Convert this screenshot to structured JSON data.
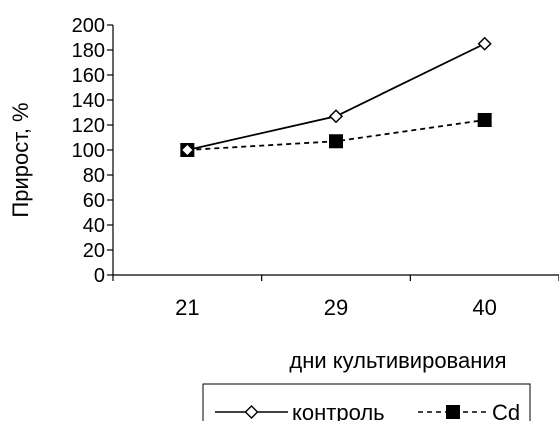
{
  "chart_data": {
    "type": "line",
    "categories": [
      "21",
      "29",
      "40"
    ],
    "ylabel": "Прирост, %",
    "xlabel": "дни культивирования",
    "ylim": [
      0,
      200
    ],
    "yticks": [
      "0",
      "20",
      "40",
      "60",
      "80",
      "100",
      "120",
      "140",
      "160",
      "180",
      "200"
    ],
    "series": [
      {
        "name": "контроль",
        "values": [
          100,
          127,
          185
        ],
        "line": "solid",
        "marker": "diamond-open",
        "color": "#000000"
      },
      {
        "name": "Cd",
        "values": [
          100,
          107,
          124
        ],
        "line": "dashed",
        "marker": "square-filled",
        "color": "#000000"
      }
    ],
    "legend_position": "bottom",
    "grid": false
  }
}
